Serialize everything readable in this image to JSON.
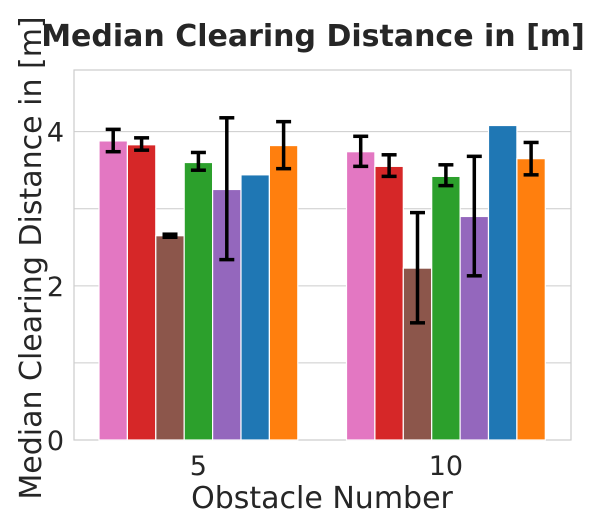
{
  "chart_data": {
    "type": "bar",
    "title": "Median Clearing Distance in [m]",
    "xlabel": "Obstacle Number",
    "ylabel": "Median Clearing Distance in [m]",
    "categories": [
      "5",
      "10"
    ],
    "ylim": [
      0,
      4.8
    ],
    "yticks": [
      0,
      2,
      4
    ],
    "grid": true,
    "series": [
      {
        "color": "#e377c2",
        "values": [
          3.88,
          3.74
        ],
        "err": [
          [
            3.74,
            4.03
          ],
          [
            3.55,
            3.94
          ]
        ]
      },
      {
        "color": "#d62728",
        "values": [
          3.83,
          3.55
        ],
        "err": [
          [
            3.76,
            3.92
          ],
          [
            3.42,
            3.7
          ]
        ]
      },
      {
        "color": "#8c564b",
        "values": [
          2.65,
          2.23
        ],
        "err": [
          [
            2.63,
            2.67
          ],
          [
            1.52,
            2.95
          ]
        ]
      },
      {
        "color": "#2ca02c",
        "values": [
          3.6,
          3.42
        ],
        "err": [
          [
            3.5,
            3.73
          ],
          [
            3.3,
            3.57
          ]
        ]
      },
      {
        "color": "#9467bd",
        "values": [
          3.25,
          2.9
        ],
        "err": [
          [
            2.34,
            4.18
          ],
          [
            2.13,
            3.68
          ]
        ]
      },
      {
        "color": "#1f77b4",
        "values": [
          3.44,
          4.08
        ],
        "err": null
      },
      {
        "color": "#ff7f0e",
        "values": [
          3.82,
          3.65
        ],
        "err": [
          [
            3.52,
            4.13
          ],
          [
            3.44,
            3.86
          ]
        ]
      }
    ]
  }
}
